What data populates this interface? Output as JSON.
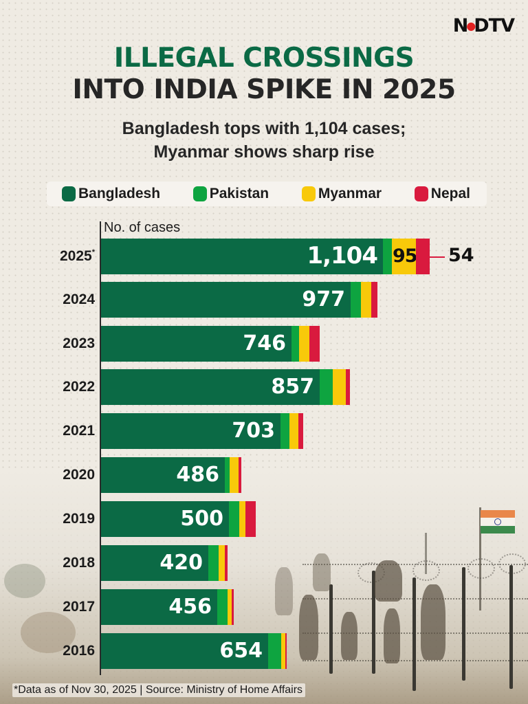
{
  "brand": {
    "logo": "NDTV",
    "logo_left": "N",
    "logo_right": "DTV"
  },
  "header": {
    "title_line1": "ILLEGAL CROSSINGS",
    "title_line2": "INTO INDIA SPIKE IN 2025",
    "subtitle_line1": "Bangladesh tops with 1,104 cases;",
    "subtitle_line2": "Myanmar shows sharp rise"
  },
  "legend": [
    {
      "label": "Bangladesh",
      "color": "#0b6a45"
    },
    {
      "label": "Pakistan",
      "color": "#0ea440"
    },
    {
      "label": "Myanmar",
      "color": "#f8c90a"
    },
    {
      "label": "Nepal",
      "color": "#d91a3e"
    }
  ],
  "axis": {
    "label": "No. of cases"
  },
  "rows": [
    {
      "year": "2025",
      "asterisk": "*",
      "bd_label": "1,104",
      "my_label": "95",
      "np_label": "54"
    },
    {
      "year": "2024",
      "bd_label": "977"
    },
    {
      "year": "2023",
      "bd_label": "746"
    },
    {
      "year": "2022",
      "bd_label": "857"
    },
    {
      "year": "2021",
      "bd_label": "703"
    },
    {
      "year": "2020",
      "bd_label": "486"
    },
    {
      "year": "2019",
      "bd_label": "500"
    },
    {
      "year": "2018",
      "bd_label": "420"
    },
    {
      "year": "2017",
      "bd_label": "456"
    },
    {
      "year": "2016",
      "bd_label": "654"
    }
  ],
  "footnote": "*Data as of Nov 30, 2025 | Source: Ministry of Home Affairs",
  "chart_data": {
    "type": "bar",
    "orientation": "horizontal",
    "stacked": true,
    "title": "ILLEGAL CROSSINGS INTO INDIA SPIKE IN 2025",
    "subtitle": "Bangladesh tops with 1,104 cases; Myanmar shows sharp rise",
    "xlabel": "No. of cases",
    "ylabel": "",
    "categories": [
      "2025*",
      "2024",
      "2023",
      "2022",
      "2021",
      "2020",
      "2019",
      "2018",
      "2017",
      "2016"
    ],
    "series": [
      {
        "name": "Bangladesh",
        "color": "#0b6a45",
        "values": [
          1104,
          977,
          746,
          857,
          703,
          486,
          500,
          420,
          456,
          654
        ]
      },
      {
        "name": "Pakistan",
        "color": "#0ea440",
        "values": [
          35,
          40,
          30,
          50,
          35,
          20,
          40,
          40,
          40,
          50
        ]
      },
      {
        "name": "Myanmar",
        "color": "#f8c90a",
        "values": [
          95,
          40,
          40,
          50,
          35,
          35,
          25,
          25,
          15,
          15
        ]
      },
      {
        "name": "Nepal",
        "color": "#d91a3e",
        "values": [
          54,
          25,
          40,
          15,
          20,
          10,
          40,
          10,
          7,
          5
        ]
      }
    ],
    "labeled_values": {
      "Bangladesh": "all years",
      "Myanmar_2025": 95,
      "Nepal_2025": 54
    },
    "note": "Only Bangladesh values (all years) and Myanmar/Nepal 2025 values are labeled; other segment values are estimated from bar widths.",
    "legend_position": "top",
    "grid": false,
    "footnote": "*Data as of Nov 30, 2025 | Source: Ministry of Home Affairs",
    "source": "Ministry of Home Affairs"
  }
}
